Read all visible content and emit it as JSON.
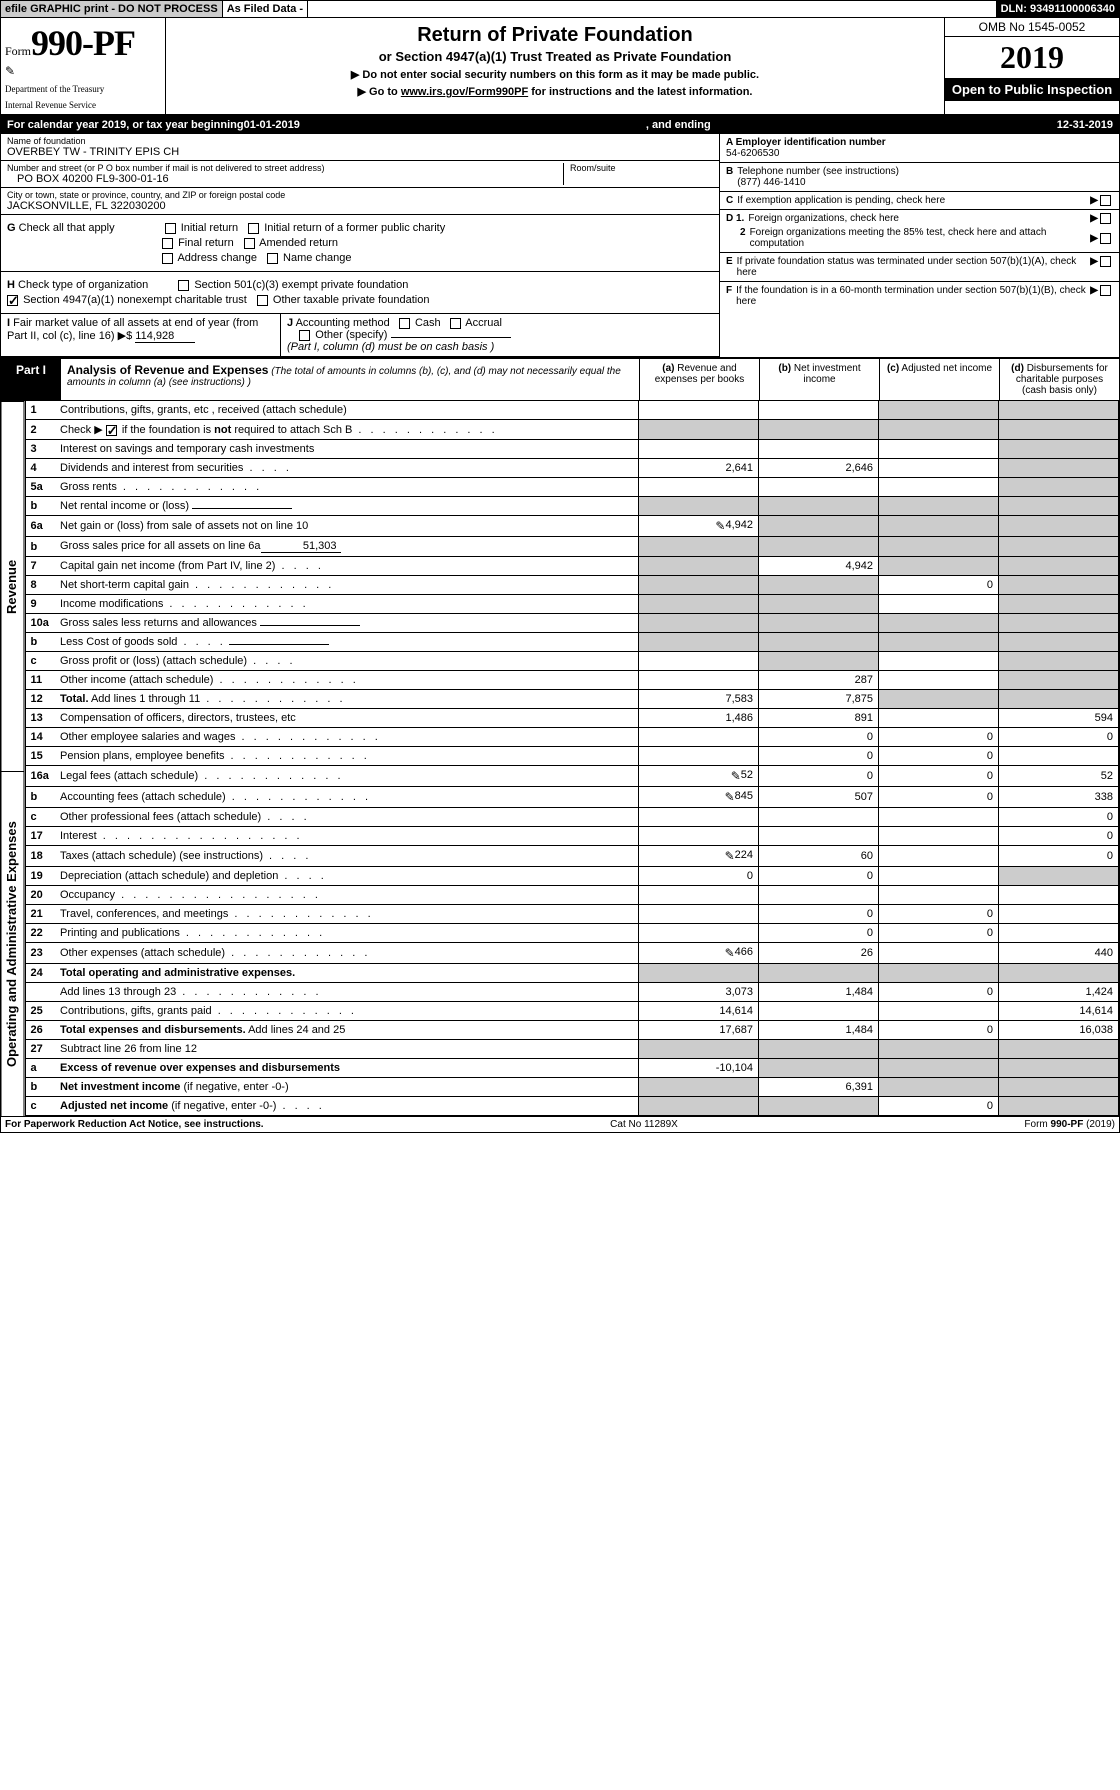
{
  "topbar": {
    "efile": "efile GRAPHIC print - DO NOT PROCESS",
    "asfiled": "As Filed Data -",
    "dln_label": "DLN:",
    "dln": "93491100006340"
  },
  "header": {
    "form_word": "Form",
    "form_num": "990-PF",
    "dept1": "Department of the Treasury",
    "dept2": "Internal Revenue Service",
    "title": "Return of Private Foundation",
    "subtitle": "or Section 4947(a)(1) Trust Treated as Private Foundation",
    "instr1": "▶ Do not enter social security numbers on this form as it may be made public.",
    "instr2_a": "▶ Go to ",
    "instr2_link": "www.irs.gov/Form990PF",
    "instr2_b": " for instructions and the latest information.",
    "omb": "OMB No 1545-0052",
    "year": "2019",
    "inspection": "Open to Public Inspection"
  },
  "calyear": {
    "prefix": "For calendar year 2019, or tax year beginning ",
    "begin": "01-01-2019",
    "mid": ", and ending ",
    "end": "12-31-2019"
  },
  "info": {
    "name_label": "Name of foundation",
    "name": "OVERBEY TW - TRINITY EPIS CH",
    "addr_label": "Number and street (or P O  box number if mail is not delivered to street address)",
    "addr": "PO BOX 40200 FL9-300-01-16",
    "room_label": "Room/suite",
    "city_label": "City or town, state or province, country, and ZIP or foreign postal code",
    "city": "JACKSONVILLE, FL  322030200",
    "a_label": "A Employer identification number",
    "a_val": "54-6206530",
    "b_label": "B",
    "b_text": "Telephone number (see instructions)",
    "b_val": "(877) 446-1410",
    "c_label": "C",
    "c_text": "If exemption application is pending, check here",
    "d1_label": "D 1.",
    "d1_text": "Foreign organizations, check here",
    "d2_label": "2",
    "d2_text": "Foreign organizations meeting the 85% test, check here and attach computation",
    "e_label": "E",
    "e_text": "If private foundation status was terminated under section 507(b)(1)(A), check here",
    "f_label": "F",
    "f_text": "If the foundation is in a 60-month termination under section 507(b)(1)(B), check here"
  },
  "g": {
    "label": "G",
    "text": "Check all that apply",
    "opts": [
      "Initial return",
      "Initial return of a former public charity",
      "Final return",
      "Amended return",
      "Address change",
      "Name change"
    ]
  },
  "h": {
    "label": "H",
    "text": "Check type of organization",
    "opts": [
      "Section 501(c)(3) exempt private foundation",
      "Section 4947(a)(1) nonexempt charitable trust",
      "Other taxable private foundation"
    ]
  },
  "i": {
    "label": "I",
    "text": "Fair market value of all assets at end of year (from Part II, col  (c), line 16) ▶",
    "dollar": "$",
    "val": "114,928"
  },
  "j": {
    "label": "J",
    "text": "Accounting method",
    "cash": "Cash",
    "accrual": "Accrual",
    "other": "Other (specify)",
    "note": "(Part I, column (d) must be on cash basis )"
  },
  "part1": {
    "label": "Part I",
    "title": "Analysis of Revenue and Expenses",
    "note": "(The total of amounts in columns (b), (c), and (d) may not necessarily equal the amounts in column (a) (see instructions) )",
    "col_a": "(a)",
    "col_a_t": "Revenue and expenses per books",
    "col_b": "(b)",
    "col_b_t": "Net investment income",
    "col_c": "(c)",
    "col_c_t": "Adjusted net income",
    "col_d": "(d)",
    "col_d_t": "Disbursements for charitable purposes (cash basis only)"
  },
  "sections": {
    "revenue": "Revenue",
    "expenses": "Operating and Administrative Expenses"
  },
  "rows": {
    "r1": {
      "n": "1",
      "d": "Contributions, gifts, grants, etc , received (attach schedule)"
    },
    "r2": {
      "n": "2",
      "d": "Check ▶",
      "d2": " if the foundation is ",
      "d3": "not",
      "d4": " required to attach Sch B"
    },
    "r3": {
      "n": "3",
      "d": "Interest on savings and temporary cash investments"
    },
    "r4": {
      "n": "4",
      "d": "Dividends and interest from securities",
      "a": "2,641",
      "b": "2,646"
    },
    "r5a": {
      "n": "5a",
      "d": "Gross rents"
    },
    "r5b": {
      "n": "b",
      "d": "Net rental income or (loss)"
    },
    "r6a": {
      "n": "6a",
      "d": "Net gain or (loss) from sale of assets not on line 10",
      "a": "4,942",
      "icon": true
    },
    "r6b": {
      "n": "b",
      "d": "Gross sales price for all assets on line 6a",
      "inline": "51,303"
    },
    "r7": {
      "n": "7",
      "d": "Capital gain net income (from Part IV, line 2)",
      "b": "4,942"
    },
    "r8": {
      "n": "8",
      "d": "Net short-term capital gain",
      "c": "0"
    },
    "r9": {
      "n": "9",
      "d": "Income modifications"
    },
    "r10a": {
      "n": "10a",
      "d": "Gross sales less returns and allowances"
    },
    "r10b": {
      "n": "b",
      "d": "Less  Cost of goods sold"
    },
    "r10c": {
      "n": "c",
      "d": "Gross profit or (loss) (attach schedule)"
    },
    "r11": {
      "n": "11",
      "d": "Other income (attach schedule)",
      "b": "287"
    },
    "r12": {
      "n": "12",
      "d": "Total.",
      "d2": " Add lines 1 through 11",
      "a": "7,583",
      "b": "7,875",
      "bold": true
    },
    "r13": {
      "n": "13",
      "d": "Compensation of officers, directors, trustees, etc",
      "a": "1,486",
      "b": "891",
      "dd": "594"
    },
    "r14": {
      "n": "14",
      "d": "Other employee salaries and wages",
      "b": "0",
      "c": "0",
      "dd": "0"
    },
    "r15": {
      "n": "15",
      "d": "Pension plans, employee benefits",
      "b": "0",
      "c": "0"
    },
    "r16a": {
      "n": "16a",
      "d": "Legal fees (attach schedule)",
      "a": "52",
      "b": "0",
      "c": "0",
      "dd": "52",
      "icon": true
    },
    "r16b": {
      "n": "b",
      "d": "Accounting fees (attach schedule)",
      "a": "845",
      "b": "507",
      "c": "0",
      "dd": "338",
      "icon": true
    },
    "r16c": {
      "n": "c",
      "d": "Other professional fees (attach schedule)",
      "dd": "0"
    },
    "r17": {
      "n": "17",
      "d": "Interest",
      "dd": "0"
    },
    "r18": {
      "n": "18",
      "d": "Taxes (attach schedule) (see instructions)",
      "a": "224",
      "b": "60",
      "dd": "0",
      "icon": true
    },
    "r19": {
      "n": "19",
      "d": "Depreciation (attach schedule) and depletion",
      "a": "0",
      "b": "0"
    },
    "r20": {
      "n": "20",
      "d": "Occupancy"
    },
    "r21": {
      "n": "21",
      "d": "Travel, conferences, and meetings",
      "b": "0",
      "c": "0"
    },
    "r22": {
      "n": "22",
      "d": "Printing and publications",
      "b": "0",
      "c": "0"
    },
    "r23": {
      "n": "23",
      "d": "Other expenses (attach schedule)",
      "a": "466",
      "b": "26",
      "dd": "440",
      "icon": true
    },
    "r24": {
      "n": "24",
      "d": "Total operating and administrative expenses.",
      "bold": true
    },
    "r24b": {
      "n": "",
      "d": "Add lines 13 through 23",
      "a": "3,073",
      "b": "1,484",
      "c": "0",
      "dd": "1,424"
    },
    "r25": {
      "n": "25",
      "d": "Contributions, gifts, grants paid",
      "a": "14,614",
      "dd": "14,614"
    },
    "r26": {
      "n": "26",
      "d": "Total expenses and disbursements.",
      "d2": " Add lines 24 and 25",
      "a": "17,687",
      "b": "1,484",
      "c": "0",
      "dd": "16,038",
      "bold": true
    },
    "r27": {
      "n": "27",
      "d": "Subtract line 26 from line 12"
    },
    "r27a": {
      "n": "a",
      "d": "Excess of revenue over expenses and disbursements",
      "a": "-10,104",
      "bold": true
    },
    "r27b": {
      "n": "b",
      "d": "Net investment income",
      "d2": " (if negative, enter -0-)",
      "b": "6,391",
      "bold": true
    },
    "r27c": {
      "n": "c",
      "d": "Adjusted net income",
      "d2": " (if negative, enter -0-)",
      "c": "0",
      "bold": true
    }
  },
  "footer": {
    "left": "For Paperwork Reduction Act Notice, see instructions.",
    "mid": "Cat  No  11289X",
    "right_a": "Form ",
    "right_b": "990-PF",
    "right_c": " (2019)"
  }
}
